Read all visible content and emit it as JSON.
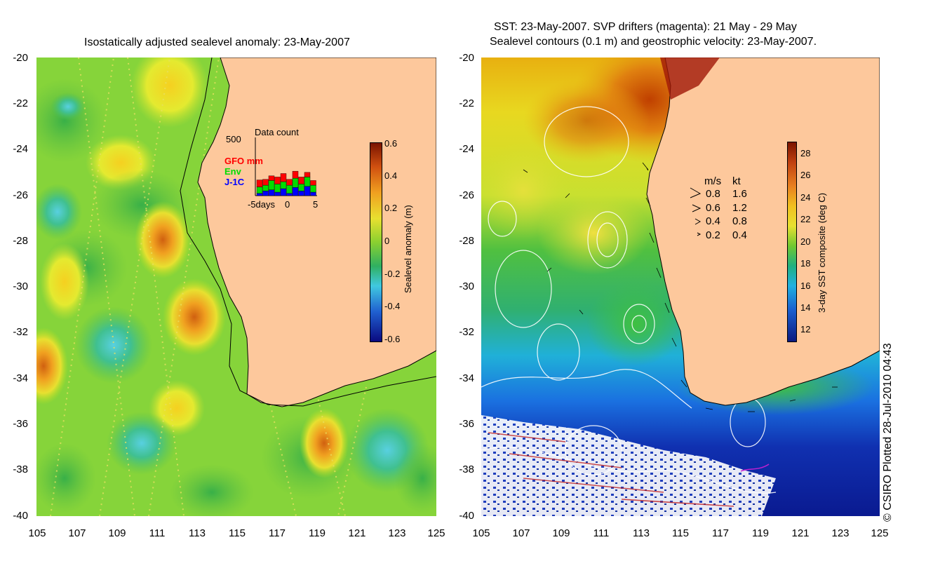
{
  "left_panel": {
    "title": "Isostatically adjusted sealevel anomaly: 23-May-2007",
    "y_ticks": [
      "-20",
      "-22",
      "-24",
      "-26",
      "-28",
      "-30",
      "-32",
      "-34",
      "-36",
      "-38",
      "-40"
    ],
    "x_ticks": [
      "105",
      "107",
      "109",
      "111",
      "113",
      "115",
      "117",
      "119",
      "121",
      "123",
      "125"
    ],
    "colorbar": {
      "label": "Sealevel anomaly (m)",
      "ticks": [
        "0.6",
        "0.4",
        "0.2",
        "0",
        "-0.2",
        "-0.4",
        "-0.6"
      ],
      "range": [
        -0.6,
        0.6
      ]
    },
    "inset": {
      "title": "Data count",
      "y_max_label": "500",
      "legend": [
        {
          "name": "GFO mm",
          "color": "#ff0000"
        },
        {
          "name": "Env",
          "color": "#00dd00"
        },
        {
          "name": "J-1C",
          "color": "#0000ff"
        }
      ],
      "x_label_left": "-5days",
      "x_label_mid": "0",
      "x_label_right": "5",
      "y_max": 500,
      "bars": [
        {
          "day": -5,
          "j1c": 20,
          "env": 55,
          "gfo": 60
        },
        {
          "day": -4,
          "j1c": 40,
          "env": 50,
          "gfo": 50
        },
        {
          "day": -3,
          "j1c": 50,
          "env": 80,
          "gfo": 40
        },
        {
          "day": -2,
          "j1c": 30,
          "env": 70,
          "gfo": 60
        },
        {
          "day": -1,
          "j1c": 60,
          "env": 60,
          "gfo": 70
        },
        {
          "day": 0,
          "j1c": 20,
          "env": 70,
          "gfo": 50
        },
        {
          "day": 1,
          "j1c": 70,
          "env": 80,
          "gfo": 60
        },
        {
          "day": 2,
          "j1c": 40,
          "env": 60,
          "gfo": 60
        },
        {
          "day": 3,
          "j1c": 80,
          "env": 80,
          "gfo": 40
        },
        {
          "day": 4,
          "j1c": 30,
          "env": 60,
          "gfo": 40
        }
      ]
    }
  },
  "right_panel": {
    "title_line1": "SST: 23-May-2007. SVP drifters (magenta): 21 May - 29 May",
    "title_line2": "Sealevel contours (0.1 m) and geostrophic velocity: 23-May-2007.",
    "y_ticks": [
      "-20",
      "-22",
      "-24",
      "-26",
      "-28",
      "-30",
      "-32",
      "-34",
      "-36",
      "-38",
      "-40"
    ],
    "x_ticks": [
      "105",
      "107",
      "109",
      "111",
      "113",
      "115",
      "117",
      "119",
      "121",
      "123",
      "125"
    ],
    "colorbar": {
      "label": "3-day SST composite (deg C)",
      "ticks": [
        "28",
        "26",
        "24",
        "22",
        "20",
        "18",
        "16",
        "14",
        "12"
      ],
      "range": [
        11,
        29
      ]
    },
    "velocity_legend": {
      "header_ms": "m/s",
      "header_kt": "kt",
      "rows": [
        {
          "ms": "0.8",
          "kt": "1.6"
        },
        {
          "ms": "0.6",
          "kt": "1.2"
        },
        {
          "ms": "0.4",
          "kt": "0.8"
        },
        {
          "ms": "0.2",
          "kt": "0.4"
        }
      ]
    }
  },
  "credit": "© CSIRO Plotted 28-Jul-2010 04:43",
  "colors": {
    "land": "#fdc89c",
    "green": "#7ed321",
    "yellow_green": "#c8e62a",
    "orange": "#f5a020",
    "teal": "#3fc8a0"
  }
}
